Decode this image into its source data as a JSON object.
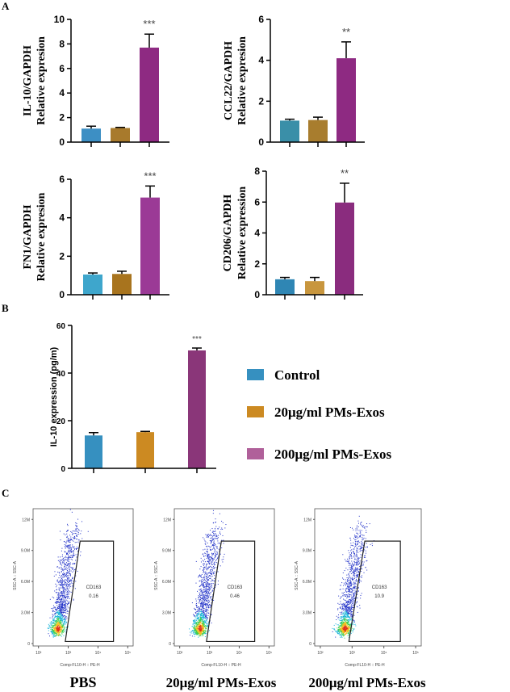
{
  "panel_labels": [
    "A",
    "B",
    "C"
  ],
  "colors": {
    "control_a": "#3d8fc4",
    "low_a": "#a87a2c",
    "high_a": "#8e2a82",
    "control_b": "#3690c0",
    "low_b": "#cc8a22",
    "high_b": "#8a3679"
  },
  "legend": [
    {
      "label": "Control",
      "color": "#3690c0"
    },
    {
      "label": "20μg/ml PMs-Exos",
      "color": "#cc8a22"
    },
    {
      "label": "200μg/ml PMs-Exos",
      "color": "#b0609a"
    }
  ],
  "chart_data": [
    {
      "type": "bar",
      "panel": "A",
      "ylabel": [
        "IL-10/GAPDH",
        "Relative expresion"
      ],
      "ylim": [
        0,
        10
      ],
      "yticks": [
        0,
        2,
        4,
        6,
        8,
        10
      ],
      "values": [
        1.1,
        1.15,
        7.7
      ],
      "errors": [
        0.2,
        0.05,
        1.1
      ],
      "significance": [
        "",
        "",
        "***"
      ],
      "colors": [
        "#3d8fc4",
        "#a87a2c",
        "#8e2a82"
      ]
    },
    {
      "type": "bar",
      "panel": "A",
      "ylabel": [
        "CCL22/GAPDH",
        "Relative expresion"
      ],
      "ylim": [
        0,
        6
      ],
      "yticks": [
        0,
        2,
        4,
        6
      ],
      "values": [
        1.05,
        1.08,
        4.1
      ],
      "errors": [
        0.07,
        0.14,
        0.8
      ],
      "significance": [
        "",
        "",
        "**"
      ],
      "colors": [
        "#3a8fa8",
        "#a87d2e",
        "#8e2a82"
      ]
    },
    {
      "type": "bar",
      "panel": "A",
      "ylabel": [
        "FN1/GAPDH",
        "Relative expresion"
      ],
      "ylim": [
        0,
        6
      ],
      "yticks": [
        0,
        2,
        4,
        6
      ],
      "values": [
        1.05,
        1.08,
        5.05
      ],
      "errors": [
        0.08,
        0.14,
        0.6
      ],
      "significance": [
        "",
        "",
        "***"
      ],
      "colors": [
        "#3ea6cc",
        "#a8741e",
        "#9b3a96"
      ]
    },
    {
      "type": "bar",
      "panel": "A",
      "ylabel": [
        "CD206/GAPDH",
        "Relative  expression"
      ],
      "ylim": [
        0,
        8
      ],
      "yticks": [
        0,
        2,
        4,
        6,
        8
      ],
      "values": [
        1.0,
        0.88,
        5.97
      ],
      "errors": [
        0.12,
        0.24,
        1.25
      ],
      "significance": [
        "",
        "",
        "**"
      ],
      "colors": [
        "#2f86b4",
        "#c8963e",
        "#8a2c7e"
      ]
    },
    {
      "type": "bar",
      "panel": "B",
      "ylabel": [
        "IL-10 expression (pg/m)"
      ],
      "ylim": [
        0,
        60
      ],
      "yticks": [
        0,
        20,
        40,
        60
      ],
      "categories": [
        "Control",
        "20μg/ml PMs-Exos",
        "200μg/ml PMs-Exos"
      ],
      "values": [
        13.8,
        15.2,
        49.5
      ],
      "errors": [
        1.2,
        0.3,
        1.0
      ],
      "significance": [
        "",
        "",
        "***"
      ],
      "colors": [
        "#3690c0",
        "#cc8a22",
        "#8a3679"
      ]
    },
    {
      "type": "scatter",
      "panel": "C",
      "title": "PBS",
      "xlabel": "Comp-FL10-H :: PE-H",
      "ylabel": "SSC-A :: SSC-A",
      "xscale": "log",
      "xticks": [
        "10²",
        "10³",
        "10⁴",
        "10⁵"
      ],
      "yticks": [
        "0",
        "3.0M",
        "6.0M",
        "9.0M",
        "12M"
      ],
      "gate": {
        "name": "CD163",
        "value": "0.16"
      }
    },
    {
      "type": "scatter",
      "panel": "C",
      "title": "20μg/ml PMs-Exos",
      "xlabel": "Comp-FL10-H :: PE-H",
      "ylabel": "SSC-A :: SSC-A",
      "xscale": "log",
      "xticks": [
        "10²",
        "10³",
        "10⁴",
        "10⁵"
      ],
      "yticks": [
        "0",
        "3.0M",
        "6.0M",
        "9.0M",
        "12M"
      ],
      "gate": {
        "name": "CD163",
        "value": "0.46"
      }
    },
    {
      "type": "scatter",
      "panel": "C",
      "title": "200μg/ml PMs-Exos",
      "xlabel": "Comp-FL10-H :: PE-H",
      "ylabel": "SSC-A :: SSC-A",
      "xscale": "log",
      "xticks": [
        "10²",
        "10³",
        "10⁴",
        "10⁵"
      ],
      "yticks": [
        "0",
        "3.0M",
        "6.0M",
        "9.0M",
        "12M"
      ],
      "gate": {
        "name": "CD163",
        "value": "10.9"
      }
    }
  ]
}
